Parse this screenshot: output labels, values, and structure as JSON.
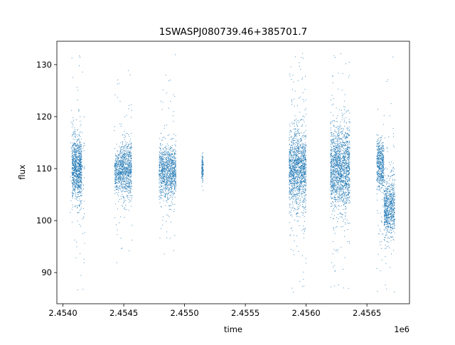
{
  "chart_data": {
    "type": "scatter",
    "title": "1SWASPJ080739.46+385701.7",
    "xlabel": "time",
    "ylabel": "flux",
    "x_offset_label": "1e6",
    "xlim": [
      2.45395,
      2.45685
    ],
    "ylim": [
      84.0,
      134.5
    ],
    "x_ticks": [
      2.454,
      2.4545,
      2.455,
      2.4555,
      2.456,
      2.4565
    ],
    "x_tick_labels": [
      "2.4540",
      "2.4545",
      "2.4550",
      "2.4555",
      "2.4560",
      "2.4565"
    ],
    "y_ticks": [
      90,
      100,
      110,
      120,
      130
    ],
    "y_tick_labels": [
      "90",
      "100",
      "110",
      "120",
      "130"
    ],
    "grid": false,
    "legend": "none",
    "point_color": "#1f77b4",
    "series": [
      {
        "clusters": [
          {
            "x_range": [
              2.454075,
              2.454155
            ],
            "y_center": 110.0,
            "y_spread": 6.5,
            "n": 900
          },
          {
            "x_range": [
              2.45406,
              2.45418
            ],
            "y_center": 110.0,
            "y_spread": 20.0,
            "n": 140
          },
          {
            "x_range": [
              2.454425,
              2.454475
            ],
            "y_center": 109.5,
            "y_spread": 4.0,
            "n": 300
          },
          {
            "x_range": [
              2.454475,
              2.454565
            ],
            "y_center": 110.0,
            "y_spread": 5.5,
            "n": 700
          },
          {
            "x_range": [
              2.45442,
              2.45457
            ],
            "y_center": 110.0,
            "y_spread": 18.0,
            "n": 100
          },
          {
            "x_range": [
              2.45479,
              2.45493
            ],
            "y_center": 109.5,
            "y_spread": 5.5,
            "n": 1000
          },
          {
            "x_range": [
              2.45479,
              2.45493
            ],
            "y_center": 109.0,
            "y_spread": 18.0,
            "n": 90
          },
          {
            "x_range": [
              2.45514,
              2.455155
            ],
            "y_center": 110.0,
            "y_spread": 3.0,
            "n": 120
          },
          {
            "x_range": [
              2.45586,
              2.456
            ],
            "y_center": 110.0,
            "y_spread": 8.0,
            "n": 1300
          },
          {
            "x_range": [
              2.45586,
              2.456
            ],
            "y_center": 110.0,
            "y_spread": 22.0,
            "n": 200
          },
          {
            "x_range": [
              2.4562,
              2.45636
            ],
            "y_center": 110.0,
            "y_spread": 8.0,
            "n": 1500
          },
          {
            "x_range": [
              2.4562,
              2.45636
            ],
            "y_center": 110.0,
            "y_spread": 23.0,
            "n": 230
          },
          {
            "x_range": [
              2.45658,
              2.45664
            ],
            "y_center": 111.0,
            "y_spread": 5.0,
            "n": 500
          },
          {
            "x_range": [
              2.45664,
              2.45673
            ],
            "y_center": 102.5,
            "y_spread": 6.0,
            "n": 700
          },
          {
            "x_range": [
              2.45658,
              2.45673
            ],
            "y_center": 104.0,
            "y_spread": 18.0,
            "n": 130
          }
        ]
      }
    ]
  }
}
